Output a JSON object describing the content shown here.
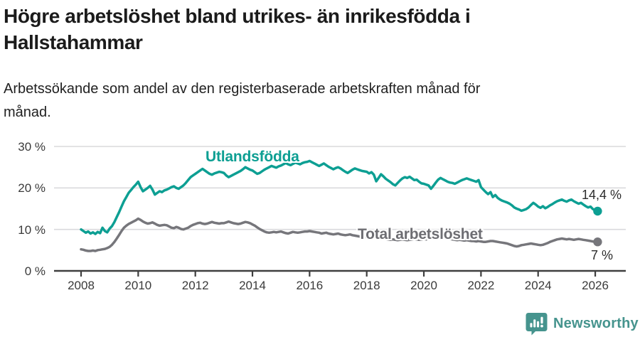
{
  "header": {
    "title_lines": [
      "Högre arbetslöshet bland utrikes- än inrikesfödda i",
      "Hallstahammar"
    ],
    "subtitle_lines": [
      "Arbetssökande som andel av den registerbaserade arbetskraften månad för",
      "månad."
    ]
  },
  "chart_data": {
    "type": "line",
    "title": "Högre arbetslöshet bland utrikes- än inrikesfödda i Hallstahammar",
    "subtitle": "Arbetssökande som andel av den registerbaserade arbetskraften månad för månad.",
    "unit": "%",
    "grid": "horizontal",
    "legend_position": "inline-labels",
    "x_axis": {
      "start": "2008-01",
      "end": "2026-02",
      "points_per_year": 12,
      "tick_years": [
        2008,
        2010,
        2012,
        2014,
        2016,
        2018,
        2020,
        2022,
        2024,
        2026
      ]
    },
    "y_axis": {
      "tick_values": [
        0,
        10,
        20,
        30
      ],
      "tick_labels": [
        "0 %",
        "10 %",
        "20 %",
        "30 %"
      ],
      "min": 0,
      "max": 31
    },
    "colors": {
      "grid": "#dadadc",
      "axis": "#3f3f3f",
      "tick_text": "#3a3a3a",
      "value_text": "#2b2b2b"
    },
    "series": [
      {
        "name": "Utlandsfödda",
        "color": "#0d9f93",
        "end_label": "14,4 %",
        "end_value": 14.4,
        "values_by_year": {
          "2008": [
            10.0,
            9.6,
            9.2,
            9.5,
            9.0,
            9.3,
            8.9,
            9.4,
            9.1,
            10.4,
            9.6,
            9.3
          ],
          "2009": [
            10.2,
            10.8,
            11.8,
            13.0,
            14.2,
            15.5,
            16.8,
            17.8,
            18.8,
            19.5,
            20.2,
            20.8
          ],
          "2010": [
            21.5,
            20.2,
            19.2,
            19.6,
            20.0,
            20.5,
            19.6,
            18.4,
            18.8,
            19.2,
            19.0,
            19.4
          ],
          "2011": [
            19.6,
            19.9,
            20.2,
            20.4,
            20.0,
            19.8,
            20.2,
            20.6,
            21.2,
            21.9,
            22.6,
            23.0
          ],
          "2012": [
            23.4,
            23.8,
            24.2,
            24.6,
            24.2,
            23.8,
            23.4,
            23.2,
            23.5,
            23.7,
            23.9,
            23.8
          ],
          "2013": [
            23.6,
            23.0,
            22.6,
            22.9,
            23.2,
            23.5,
            23.8,
            24.1,
            24.5,
            25.0,
            24.7,
            24.4
          ],
          "2014": [
            24.2,
            23.8,
            23.4,
            23.6,
            24.0,
            24.4,
            24.7,
            25.0,
            25.3,
            25.1,
            24.9,
            25.2
          ],
          "2015": [
            25.4,
            25.7,
            26.0,
            25.7,
            25.5,
            25.8,
            26.1,
            25.9,
            25.7,
            26.0,
            26.2,
            26.3
          ],
          "2016": [
            26.5,
            26.2,
            25.9,
            25.6,
            25.3,
            25.6,
            25.9,
            25.5,
            25.1,
            24.8,
            24.5,
            24.8
          ],
          "2017": [
            25.0,
            24.7,
            24.3,
            23.9,
            23.6,
            24.0,
            24.4,
            24.7,
            24.5,
            24.3,
            24.1,
            24.0
          ],
          "2018": [
            23.9,
            23.5,
            23.8,
            23.2,
            21.6,
            22.4,
            23.3,
            22.8,
            22.2,
            21.8,
            21.4,
            20.9
          ],
          "2019": [
            20.6,
            21.2,
            21.8,
            22.3,
            22.6,
            22.4,
            22.7,
            22.3,
            21.9,
            22.0,
            21.5,
            21.1
          ],
          "2020": [
            21.0,
            20.8,
            20.6,
            19.8,
            20.5,
            21.3,
            22.0,
            22.4,
            22.1,
            21.8,
            21.5,
            21.3
          ],
          "2021": [
            21.2,
            21.0,
            21.3,
            21.6,
            21.9,
            22.1,
            22.3,
            22.1,
            21.9,
            21.7,
            21.5,
            21.9
          ],
          "2022": [
            20.2,
            19.6,
            19.0,
            18.5,
            19.0,
            17.8,
            18.3,
            17.6,
            17.2,
            16.9,
            16.7,
            16.5
          ],
          "2023": [
            16.2,
            15.8,
            15.3,
            15.0,
            14.8,
            14.5,
            14.7,
            14.9,
            15.3,
            15.9,
            16.4,
            16.0
          ],
          "2024": [
            15.5,
            15.2,
            15.6,
            15.1,
            15.4,
            15.8,
            16.1,
            16.5,
            16.8,
            17.0,
            17.2,
            16.9
          ],
          "2025": [
            16.7,
            17.0,
            17.2,
            16.8,
            16.5,
            16.2,
            16.4,
            16.0,
            15.6,
            15.3,
            15.5,
            14.9
          ],
          "2026": [
            14.7,
            14.4
          ]
        }
      },
      {
        "name": "Total arbetslöshet",
        "color": "#76767b",
        "label_color": "#6d6d72",
        "end_label": "7 %",
        "end_value": 7.0,
        "values_by_year": {
          "2008": [
            5.2,
            5.1,
            4.9,
            4.8,
            4.8,
            4.9,
            4.8,
            5.0,
            5.1,
            5.2,
            5.3,
            5.5
          ],
          "2009": [
            5.8,
            6.3,
            7.0,
            7.8,
            8.7,
            9.6,
            10.4,
            10.9,
            11.3,
            11.6,
            11.9,
            12.2
          ],
          "2010": [
            12.6,
            12.3,
            11.9,
            11.6,
            11.4,
            11.5,
            11.7,
            11.4,
            11.1,
            10.9,
            11.0,
            11.1
          ],
          "2011": [
            11.0,
            10.7,
            10.4,
            10.3,
            10.6,
            10.4,
            10.1,
            10.0,
            10.2,
            10.4,
            10.8,
            11.1
          ],
          "2012": [
            11.3,
            11.5,
            11.6,
            11.4,
            11.3,
            11.4,
            11.6,
            11.8,
            11.6,
            11.5,
            11.4,
            11.5
          ],
          "2013": [
            11.5,
            11.7,
            11.9,
            11.7,
            11.5,
            11.4,
            11.3,
            11.4,
            11.6,
            11.8,
            11.7,
            11.5
          ],
          "2014": [
            11.2,
            10.9,
            10.5,
            10.1,
            9.8,
            9.5,
            9.3,
            9.2,
            9.3,
            9.4,
            9.3,
            9.4
          ],
          "2015": [
            9.5,
            9.3,
            9.1,
            9.0,
            9.2,
            9.4,
            9.3,
            9.2,
            9.3,
            9.4,
            9.5,
            9.5
          ],
          "2016": [
            9.6,
            9.5,
            9.4,
            9.3,
            9.2,
            9.0,
            9.1,
            9.2,
            9.0,
            8.9,
            8.8,
            8.9
          ],
          "2017": [
            9.0,
            8.8,
            8.7,
            8.6,
            8.7,
            8.8,
            8.6,
            8.5,
            8.4,
            8.3,
            8.2,
            8.2
          ],
          "2018": [
            8.1,
            8.0,
            7.9,
            8.0,
            7.9,
            7.8,
            7.7,
            7.8,
            7.7,
            7.6,
            7.5,
            7.6
          ],
          "2019": [
            7.5,
            7.4,
            7.5,
            7.6,
            7.5,
            7.4,
            7.5,
            7.6,
            7.7,
            7.6,
            7.5,
            7.6
          ],
          "2020": [
            7.7,
            7.6,
            7.8,
            8.0,
            8.2,
            8.3,
            8.2,
            8.1,
            8.0,
            7.9,
            7.8,
            7.7
          ],
          "2021": [
            7.6,
            7.5,
            7.4,
            7.5,
            7.4,
            7.3,
            7.4,
            7.3,
            7.2,
            7.2,
            7.1,
            7.2
          ],
          "2022": [
            7.1,
            7.0,
            7.0,
            7.1,
            7.2,
            7.2,
            7.1,
            7.0,
            6.9,
            6.8,
            6.7,
            6.6
          ],
          "2023": [
            6.4,
            6.2,
            6.0,
            5.9,
            6.0,
            6.2,
            6.3,
            6.4,
            6.5,
            6.6,
            6.5,
            6.4
          ],
          "2024": [
            6.3,
            6.2,
            6.3,
            6.5,
            6.7,
            7.0,
            7.2,
            7.4,
            7.6,
            7.7,
            7.8,
            7.7
          ],
          "2025": [
            7.6,
            7.7,
            7.6,
            7.5,
            7.6,
            7.7,
            7.6,
            7.5,
            7.4,
            7.3,
            7.2,
            7.1
          ],
          "2026": [
            7.0,
            7.0
          ]
        }
      }
    ]
  },
  "footer": {
    "brand": "Newsworthy",
    "brand_color": "#46948e"
  }
}
